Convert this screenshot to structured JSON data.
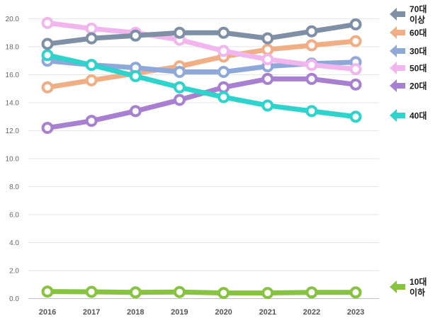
{
  "chart_data": {
    "type": "line",
    "title": "",
    "xlabel": "",
    "ylabel": "",
    "categories": [
      "2016",
      "2017",
      "2018",
      "2019",
      "2020",
      "2021",
      "2022",
      "2023"
    ],
    "ylim": [
      0,
      20
    ],
    "yticks": [
      "0.0",
      "2.0",
      "4.0",
      "6.0",
      "8.0",
      "10.0",
      "12.0",
      "14.0",
      "16.0",
      "18.0",
      "20.0"
    ],
    "ytick_values": [
      0,
      2,
      4,
      6,
      8,
      10,
      12,
      14,
      16,
      18,
      20
    ],
    "grid": true,
    "legend_position": "right",
    "series": [
      {
        "id": "s10",
        "name": "10대 이하",
        "label_lines": [
          "10대",
          "이하"
        ],
        "color": "#86C440",
        "values": [
          0.5,
          0.48,
          0.44,
          0.47,
          0.4,
          0.4,
          0.44,
          0.44
        ]
      },
      {
        "id": "s20",
        "name": "20대",
        "label_lines": [
          "20대"
        ],
        "color": "#A780D2",
        "values": [
          12.2,
          12.7,
          13.4,
          14.2,
          15.1,
          15.7,
          15.7,
          15.3
        ]
      },
      {
        "id": "s30",
        "name": "30대",
        "label_lines": [
          "30대"
        ],
        "color": "#8FA8DA",
        "values": [
          17.0,
          16.7,
          16.5,
          16.2,
          16.2,
          16.6,
          16.8,
          16.9
        ]
      },
      {
        "id": "s40",
        "name": "40대",
        "label_lines": [
          "40대"
        ],
        "color": "#2ED3CC",
        "values": [
          17.4,
          16.7,
          15.9,
          15.1,
          14.4,
          13.8,
          13.4,
          13.0
        ]
      },
      {
        "id": "s50",
        "name": "50대",
        "label_lines": [
          "50대"
        ],
        "color": "#F2B6EE",
        "values": [
          19.7,
          19.3,
          19.0,
          18.5,
          17.7,
          17.1,
          16.7,
          16.4
        ]
      },
      {
        "id": "s60",
        "name": "60대",
        "label_lines": [
          "60대"
        ],
        "color": "#F0AE84",
        "values": [
          15.1,
          15.6,
          16.1,
          16.6,
          17.3,
          17.8,
          18.1,
          18.4
        ]
      },
      {
        "id": "s70",
        "name": "70대 이상",
        "label_lines": [
          "70대",
          "이상"
        ],
        "color": "#7F8FA6",
        "values": [
          18.2,
          18.6,
          18.8,
          19.0,
          19.0,
          18.6,
          19.1,
          19.6
        ]
      }
    ],
    "draw_order": [
      "s10",
      "s20",
      "s60",
      "s30",
      "s40",
      "s50",
      "s70"
    ],
    "legend_order": [
      "s70",
      "s60",
      "s30",
      "s50",
      "s20",
      "s40",
      "s10"
    ]
  }
}
